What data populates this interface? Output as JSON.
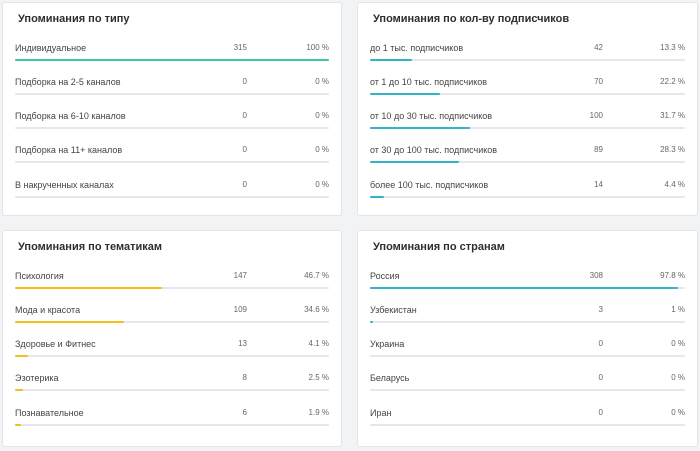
{
  "accent": {
    "type": "#3cc7a4",
    "subs": "#2fb6c6",
    "topics": "#f2c01e",
    "countries": "#2fb6c6"
  },
  "cards": [
    {
      "key": "type",
      "title": "Упоминания по типу",
      "rows": [
        {
          "label": "Индивидуальное",
          "count": "315",
          "pct": "100 %",
          "value": 100
        },
        {
          "label": "Подборка на 2-5 каналов",
          "count": "0",
          "pct": "0 %",
          "value": 0
        },
        {
          "label": "Подборка на 6-10 каналов",
          "count": "0",
          "pct": "0 %",
          "value": 0
        },
        {
          "label": "Подборка на 11+ каналов",
          "count": "0",
          "pct": "0 %",
          "value": 0
        },
        {
          "label": "В накрученных каналах",
          "count": "0",
          "pct": "0 %",
          "value": 0
        }
      ]
    },
    {
      "key": "subs",
      "title": "Упоминания по кол-ву подписчиков",
      "rows": [
        {
          "label": "до 1 тыс. подписчиков",
          "count": "42",
          "pct": "13.3 %",
          "value": 13.3
        },
        {
          "label": "от 1 до 10 тыс. подписчиков",
          "count": "70",
          "pct": "22.2 %",
          "value": 22.2
        },
        {
          "label": "от 10 до 30 тыс. подписчиков",
          "count": "100",
          "pct": "31.7 %",
          "value": 31.7
        },
        {
          "label": "от 30 до 100 тыс. подписчиков",
          "count": "89",
          "pct": "28.3 %",
          "value": 28.3
        },
        {
          "label": "более 100 тыс. подписчиков",
          "count": "14",
          "pct": "4.4 %",
          "value": 4.4
        }
      ]
    },
    {
      "key": "topics",
      "title": "Упоминания по тематикам",
      "rows": [
        {
          "label": "Психология",
          "count": "147",
          "pct": "46.7 %",
          "value": 46.7
        },
        {
          "label": "Мода и красота",
          "count": "109",
          "pct": "34.6 %",
          "value": 34.6
        },
        {
          "label": "Здоровье и Фитнес",
          "count": "13",
          "pct": "4.1 %",
          "value": 4.1
        },
        {
          "label": "Эзотерика",
          "count": "8",
          "pct": "2.5 %",
          "value": 2.5
        },
        {
          "label": "Познавательное",
          "count": "6",
          "pct": "1.9 %",
          "value": 1.9
        }
      ]
    },
    {
      "key": "countries",
      "title": "Упоминания по странам",
      "rows": [
        {
          "label": "Россия",
          "count": "308",
          "pct": "97.8 %",
          "value": 97.8
        },
        {
          "label": "Узбекистан",
          "count": "3",
          "pct": "1 %",
          "value": 1
        },
        {
          "label": "Украина",
          "count": "0",
          "pct": "0 %",
          "value": 0
        },
        {
          "label": "Беларусь",
          "count": "0",
          "pct": "0 %",
          "value": 0
        },
        {
          "label": "Иран",
          "count": "0",
          "pct": "0 %",
          "value": 0
        }
      ]
    }
  ]
}
